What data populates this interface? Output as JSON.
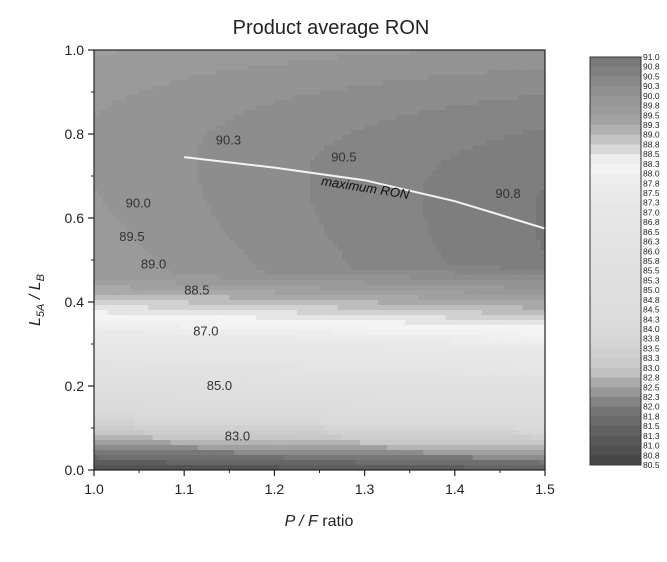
{
  "chart_data": {
    "type": "heatmap",
    "title": "Product average RON",
    "xlabel": {
      "main": "P / F",
      "suffix": " ratio"
    },
    "ylabel": {
      "base1": "L",
      "sub1": "5A",
      "sep": " / ",
      "base2": "L",
      "sub2": "B"
    },
    "xlim": [
      1.0,
      1.5
    ],
    "ylim": [
      0.0,
      1.0
    ],
    "x_ticks": [
      "1.0",
      "1.1",
      "1.2",
      "1.3",
      "1.4",
      "1.5"
    ],
    "y_ticks": [
      "0.0",
      "0.2",
      "0.4",
      "0.6",
      "0.8",
      "1.0"
    ],
    "grid": false,
    "colorbar": {
      "min": 80.5,
      "max": 91.0,
      "levels": [
        "91.0",
        "90.8",
        "90.5",
        "90.3",
        "90.0",
        "89.8",
        "89.5",
        "89.3",
        "89.0",
        "88.8",
        "88.5",
        "88.3",
        "88.0",
        "87.8",
        "87.5",
        "87.3",
        "87.0",
        "86.8",
        "86.5",
        "86.3",
        "86.0",
        "85.8",
        "85.5",
        "85.3",
        "85.0",
        "84.8",
        "84.5",
        "84.3",
        "84.0",
        "83.8",
        "83.5",
        "83.3",
        "83.0",
        "82.8",
        "82.5",
        "82.3",
        "82.0",
        "81.8",
        "81.5",
        "81.3",
        "81.0",
        "80.8",
        "80.5"
      ]
    },
    "contour_labels": [
      {
        "text": "90.3",
        "x": 1.135,
        "y": 0.775
      },
      {
        "text": "90.5",
        "x": 1.263,
        "y": 0.735
      },
      {
        "text": "90.0",
        "x": 1.035,
        "y": 0.625
      },
      {
        "text": "90.8",
        "x": 1.445,
        "y": 0.648
      },
      {
        "text": "89.5",
        "x": 1.028,
        "y": 0.545
      },
      {
        "text": "89.0",
        "x": 1.052,
        "y": 0.48
      },
      {
        "text": "88.5",
        "x": 1.1,
        "y": 0.418
      },
      {
        "text": "87.0",
        "x": 1.11,
        "y": 0.32
      },
      {
        "text": "85.0",
        "x": 1.125,
        "y": 0.19
      },
      {
        "text": "83.0",
        "x": 1.145,
        "y": 0.07
      }
    ],
    "annotation": {
      "text": "maximum RON",
      "x": 1.3,
      "y": 0.662,
      "angle": 9
    },
    "maximum_ron_line": {
      "x": [
        1.1,
        1.2,
        1.3,
        1.4,
        1.5
      ],
      "y": [
        0.745,
        0.72,
        0.69,
        0.64,
        0.575
      ]
    }
  }
}
